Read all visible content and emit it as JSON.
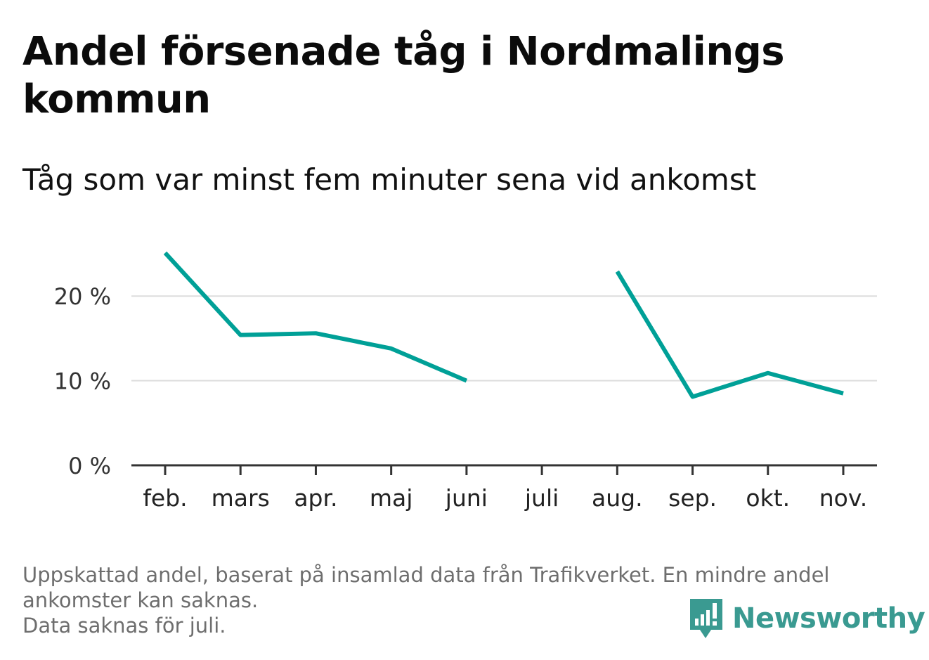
{
  "title": "Andel försenade tåg i Nordmalings kommun",
  "subtitle": "Tåg som var minst fem minuter sena vid ankomst",
  "notes": [
    "Uppskattad andel, baserat på insamlad data från Trafikverket. En mindre andel",
    "ankomster kan saknas.",
    "Data saknas för juli."
  ],
  "logo": {
    "text": "Newsworthy",
    "icon": "bar-chart-speech-bubble-icon"
  },
  "colors": {
    "line": "#00a097",
    "grid": "#dddddd",
    "axis": "#333333",
    "logo": "#3a9a91",
    "note": "#6e6e6e"
  },
  "chart_data": {
    "type": "line",
    "title": "Andel försenade tåg i Nordmalings kommun",
    "subtitle": "Tåg som var minst fem minuter sena vid ankomst",
    "xlabel": "",
    "ylabel": "",
    "categories": [
      "feb.",
      "mars",
      "apr.",
      "maj",
      "juni",
      "juli",
      "aug.",
      "sep.",
      "okt.",
      "nov."
    ],
    "series": [
      {
        "values": [
          25.1,
          15.4,
          15.6,
          13.8,
          10.0,
          null,
          22.9,
          8.1,
          10.9,
          8.5
        ]
      }
    ],
    "yticks": [
      0,
      10,
      20
    ],
    "ytick_labels": [
      "0 %",
      "10 %",
      "20 %"
    ],
    "ylim": [
      0,
      25.5
    ],
    "grid": true,
    "legend": "none"
  }
}
